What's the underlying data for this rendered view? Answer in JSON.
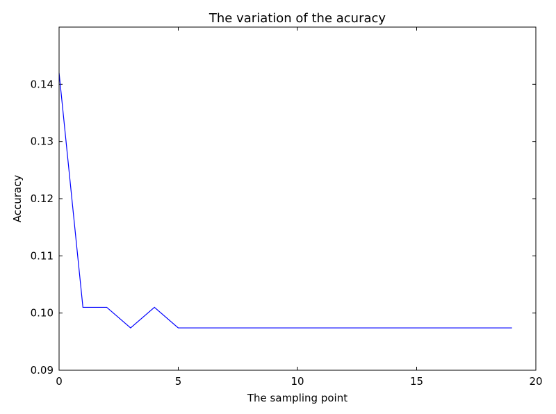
{
  "chart_data": {
    "type": "line",
    "title": "The variation of the acuracy",
    "xlabel": "The sampling point",
    "ylabel": "Accuracy",
    "xlim": [
      0,
      20
    ],
    "ylim": [
      0.09,
      0.15
    ],
    "x_ticks": [
      0,
      5,
      10,
      15,
      20
    ],
    "x_tick_labels": [
      "0",
      "5",
      "10",
      "15",
      "20"
    ],
    "y_ticks": [
      0.09,
      0.1,
      0.11,
      0.12,
      0.13,
      0.14
    ],
    "y_tick_labels": [
      "0.09",
      "0.10",
      "0.11",
      "0.12",
      "0.13",
      "0.14"
    ],
    "grid": false,
    "series": [
      {
        "color": "#0000ff",
        "x": [
          0,
          1,
          2,
          3,
          4,
          5,
          6,
          7,
          8,
          9,
          10,
          11,
          12,
          13,
          14,
          15,
          16,
          17,
          18,
          19
        ],
        "values": [
          0.142,
          0.101,
          0.101,
          0.0974,
          0.101,
          0.0974,
          0.0974,
          0.0974,
          0.0974,
          0.0974,
          0.0974,
          0.0974,
          0.0974,
          0.0974,
          0.0974,
          0.0974,
          0.0974,
          0.0974,
          0.0974,
          0.0974
        ]
      }
    ]
  }
}
